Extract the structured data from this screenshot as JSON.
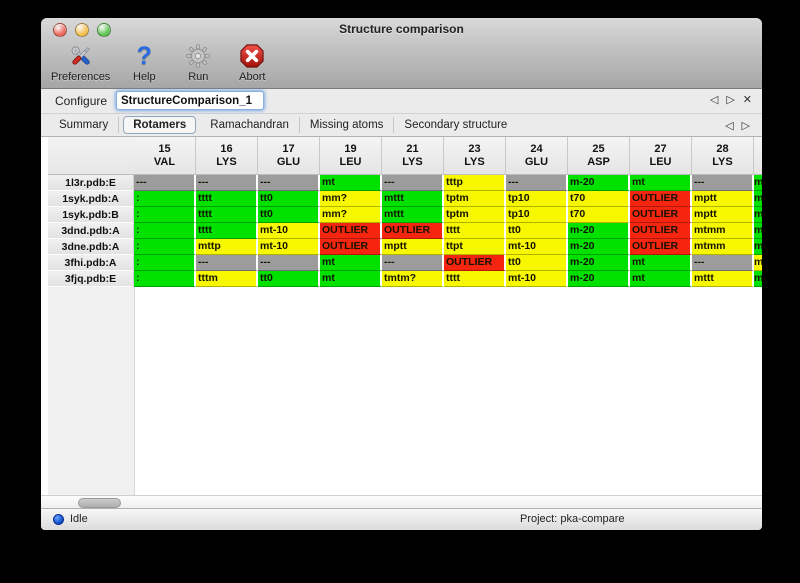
{
  "window": {
    "title": "Structure comparison",
    "traffic_colors": {
      "close": "#ec6a5e",
      "minimize": "#f5bf4f",
      "zoom": "#61c555"
    }
  },
  "toolbar": {
    "items": [
      {
        "label": "Preferences",
        "icon": "tools-icon"
      },
      {
        "label": "Help",
        "icon": "question-icon",
        "glyph": "?"
      },
      {
        "label": "Run",
        "icon": "gear-icon"
      },
      {
        "label": "Abort",
        "icon": "stop-icon"
      }
    ]
  },
  "configure": {
    "label": "Configure",
    "value": "StructureComparison_1",
    "nav": {
      "back": "◁",
      "forward": "▷",
      "close": "✕"
    }
  },
  "tabbar": {
    "tabs": [
      {
        "label": "Summary"
      },
      {
        "label": "Rotamers",
        "selected": true
      },
      {
        "label": "Ramachandran"
      },
      {
        "label": "Missing atoms"
      },
      {
        "label": "Secondary structure"
      }
    ],
    "nav": {
      "back": "◁",
      "forward": "▷"
    }
  },
  "table": {
    "status_colors": {
      "ok": "#00e100",
      "warn": "#f7f700",
      "outlier": "#f5250f",
      "none": "#9c9c9c"
    },
    "columns": [
      {
        "num": "15",
        "res": "VAL"
      },
      {
        "num": "16",
        "res": "LYS"
      },
      {
        "num": "17",
        "res": "GLU"
      },
      {
        "num": "19",
        "res": "LEU"
      },
      {
        "num": "21",
        "res": "LYS"
      },
      {
        "num": "23",
        "res": "LYS"
      },
      {
        "num": "24",
        "res": "GLU"
      },
      {
        "num": "25",
        "res": "ASP"
      },
      {
        "num": "27",
        "res": "LEU"
      },
      {
        "num": "28",
        "res": "LYS"
      }
    ],
    "rows": [
      {
        "label": "1l3r.pdb:E",
        "cells": [
          [
            "---",
            "none"
          ],
          [
            "---",
            "none"
          ],
          [
            "---",
            "none"
          ],
          [
            "mt",
            "ok"
          ],
          [
            "---",
            "none"
          ],
          [
            "tttp",
            "warn"
          ],
          [
            "---",
            "none"
          ],
          [
            "m-20",
            "ok"
          ],
          [
            "mt",
            "ok"
          ],
          [
            "---",
            "none"
          ]
        ],
        "edge": [
          "m",
          "ok"
        ]
      },
      {
        "label": "1syk.pdb:A",
        "cells": [
          [
            ":",
            "ok"
          ],
          [
            "tttt",
            "ok"
          ],
          [
            "tt0",
            "ok"
          ],
          [
            "mm?",
            "warn"
          ],
          [
            "mttt",
            "ok"
          ],
          [
            "tptm",
            "warn"
          ],
          [
            "tp10",
            "warn"
          ],
          [
            "t70",
            "warn"
          ],
          [
            "OUTLIER",
            "outlier"
          ],
          [
            "mptt",
            "warn"
          ]
        ],
        "edge": [
          "m",
          "ok"
        ]
      },
      {
        "label": "1syk.pdb:B",
        "cells": [
          [
            ":",
            "ok"
          ],
          [
            "tttt",
            "ok"
          ],
          [
            "tt0",
            "ok"
          ],
          [
            "mm?",
            "warn"
          ],
          [
            "mttt",
            "ok"
          ],
          [
            "tptm",
            "warn"
          ],
          [
            "tp10",
            "warn"
          ],
          [
            "t70",
            "warn"
          ],
          [
            "OUTLIER",
            "outlier"
          ],
          [
            "mptt",
            "warn"
          ]
        ],
        "edge": [
          "m",
          "ok"
        ]
      },
      {
        "label": "3dnd.pdb:A",
        "cells": [
          [
            ":",
            "ok"
          ],
          [
            "tttt",
            "ok"
          ],
          [
            "mt-10",
            "warn"
          ],
          [
            "OUTLIER",
            "outlier"
          ],
          [
            "OUTLIER",
            "outlier"
          ],
          [
            "tttt",
            "warn"
          ],
          [
            "tt0",
            "warn"
          ],
          [
            "m-20",
            "ok"
          ],
          [
            "OUTLIER",
            "outlier"
          ],
          [
            "mtmm",
            "warn"
          ]
        ],
        "edge": [
          "m",
          "ok"
        ]
      },
      {
        "label": "3dne.pdb:A",
        "cells": [
          [
            ":",
            "ok"
          ],
          [
            "mttp",
            "warn"
          ],
          [
            "mt-10",
            "warn"
          ],
          [
            "OUTLIER",
            "outlier"
          ],
          [
            "mptt",
            "warn"
          ],
          [
            "ttpt",
            "warn"
          ],
          [
            "mt-10",
            "warn"
          ],
          [
            "m-20",
            "ok"
          ],
          [
            "OUTLIER",
            "outlier"
          ],
          [
            "mtmm",
            "warn"
          ]
        ],
        "edge": [
          "m",
          "ok"
        ]
      },
      {
        "label": "3fhi.pdb:A",
        "cells": [
          [
            ":",
            "ok"
          ],
          [
            "---",
            "none"
          ],
          [
            "---",
            "none"
          ],
          [
            "mt",
            "ok"
          ],
          [
            "---",
            "none"
          ],
          [
            "OUTLIER",
            "outlier"
          ],
          [
            "tt0",
            "warn"
          ],
          [
            "m-20",
            "ok"
          ],
          [
            "mt",
            "ok"
          ],
          [
            "---",
            "none"
          ]
        ],
        "edge": [
          "m",
          "warn"
        ]
      },
      {
        "label": "3fjq.pdb:E",
        "cells": [
          [
            ":",
            "ok"
          ],
          [
            "tttm",
            "warn"
          ],
          [
            "tt0",
            "ok"
          ],
          [
            "mt",
            "ok"
          ],
          [
            "tmtm?",
            "warn"
          ],
          [
            "tttt",
            "warn"
          ],
          [
            "mt-10",
            "warn"
          ],
          [
            "m-20",
            "ok"
          ],
          [
            "mt",
            "ok"
          ],
          [
            "mttt",
            "warn"
          ]
        ],
        "edge": [
          "m",
          "ok"
        ]
      }
    ]
  },
  "statusbar": {
    "status": "Idle",
    "project": "Project: pka-compare"
  }
}
